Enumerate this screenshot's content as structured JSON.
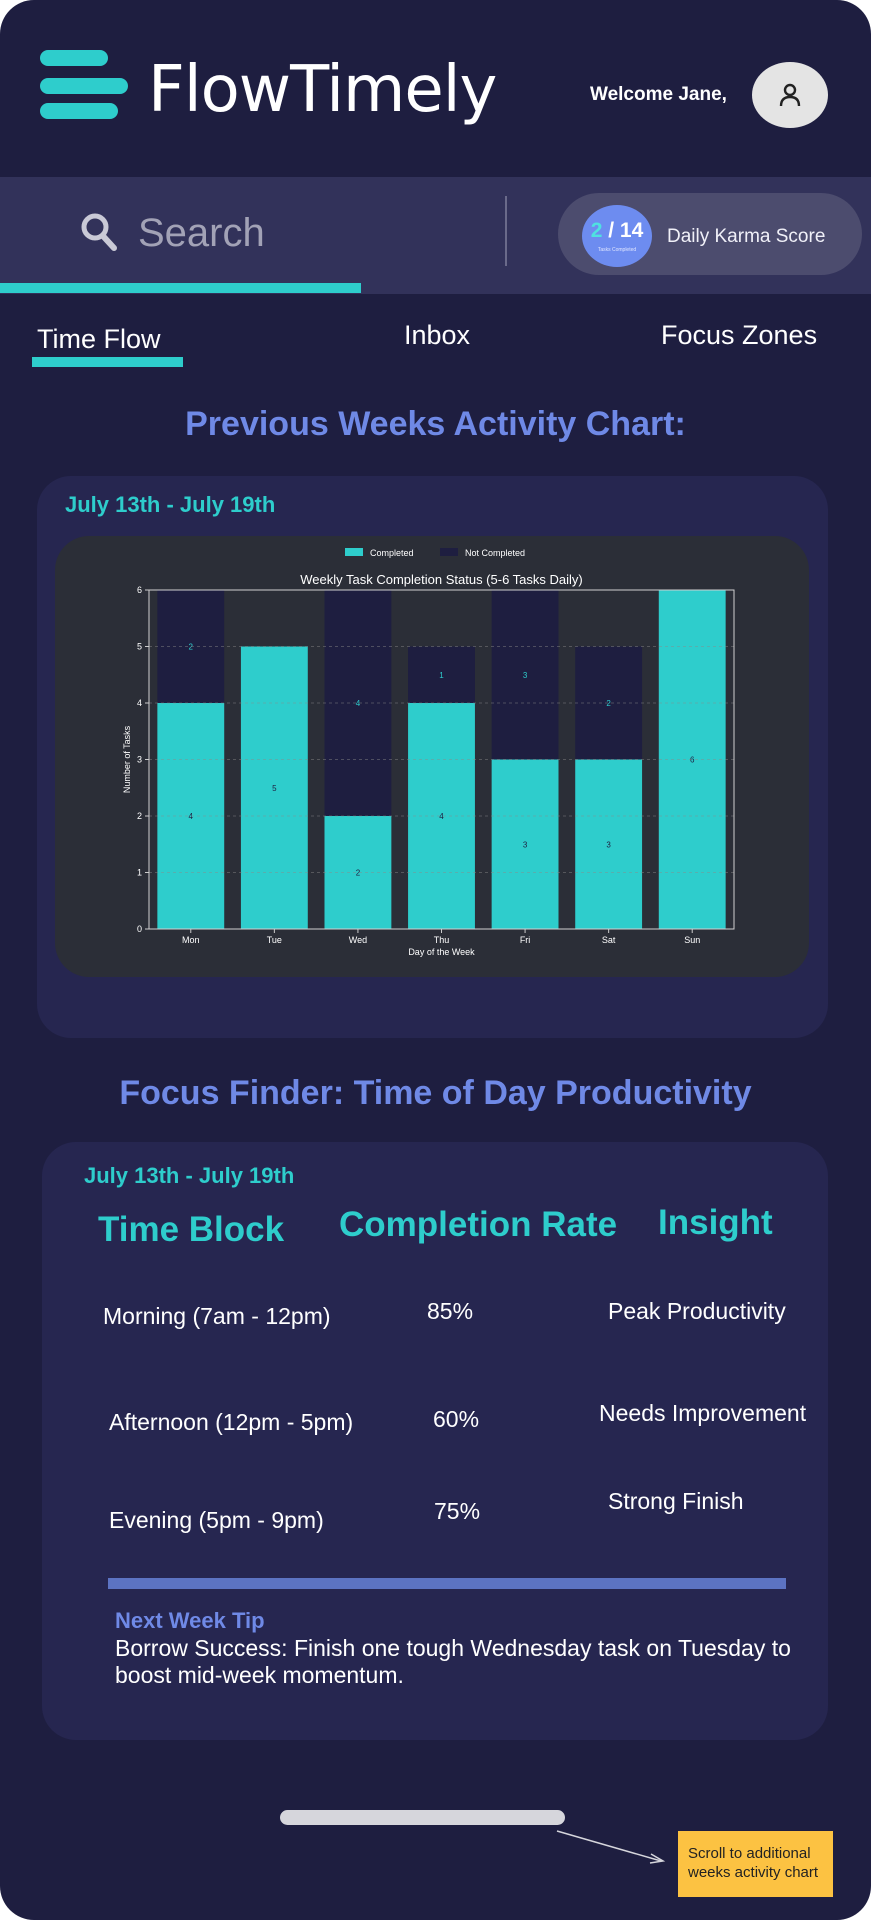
{
  "header": {
    "app_title": "FlowTimely",
    "welcome": "Welcome Jane,"
  },
  "search": {
    "placeholder": "Search"
  },
  "karma": {
    "completed": "2",
    "separator": " / ",
    "total": "14",
    "sub_label": "Tasks Completed",
    "label": "Daily Karma Score"
  },
  "tabs": [
    {
      "label": "Time Flow",
      "active": true
    },
    {
      "label": "Inbox",
      "active": false
    },
    {
      "label": "Focus Zones",
      "active": false
    }
  ],
  "activity_section": {
    "title": "Previous Weeks Activity Chart:",
    "date_range": "July 13th - July 19th"
  },
  "chart_data": {
    "type": "bar",
    "stacked": true,
    "title": "Weekly Task Completion Status (5-6 Tasks Daily)",
    "xlabel": "Day of the Week",
    "ylabel": "Number of Tasks",
    "categories": [
      "Mon",
      "Tue",
      "Wed",
      "Thu",
      "Fri",
      "Sat",
      "Sun"
    ],
    "series": [
      {
        "name": "Completed",
        "values": [
          4,
          5,
          2,
          4,
          3,
          3,
          6
        ],
        "color": "#2ecdcc"
      },
      {
        "name": "Not Completed",
        "values": [
          2,
          0,
          4,
          1,
          3,
          2,
          0
        ],
        "color": "#1e1e40"
      }
    ],
    "ylim": [
      0,
      6
    ],
    "yticks": [
      0,
      1,
      2,
      3,
      4,
      5,
      6
    ],
    "grid": true,
    "legend_position": "top-center"
  },
  "focus_section": {
    "title": "Focus Finder: Time of Day Productivity",
    "date_range": "July 13th - July 19th",
    "headers": [
      "Time Block",
      "Completion Rate",
      "Insight"
    ],
    "rows": [
      {
        "block": "Morning (7am - 12pm)",
        "rate": "85%",
        "insight": "Peak Productivity"
      },
      {
        "block": "Afternoon (12pm - 5pm)",
        "rate": "60%",
        "insight": "Needs Improvement"
      },
      {
        "block": "Evening (5pm - 9pm)",
        "rate": "75%",
        "insight": "Strong Finish"
      }
    ],
    "tip_title": "Next Week Tip",
    "tip_text": "Borrow Success: Finish one tough Wednesday task on Tuesday to boost mid-week momentum."
  },
  "annotation": {
    "note": "Scroll to additional weeks activity chart"
  },
  "colors": {
    "background": "#1e1e40",
    "accent": "#2ecdcc",
    "heading": "#6f89e6",
    "note": "#fcc242"
  }
}
